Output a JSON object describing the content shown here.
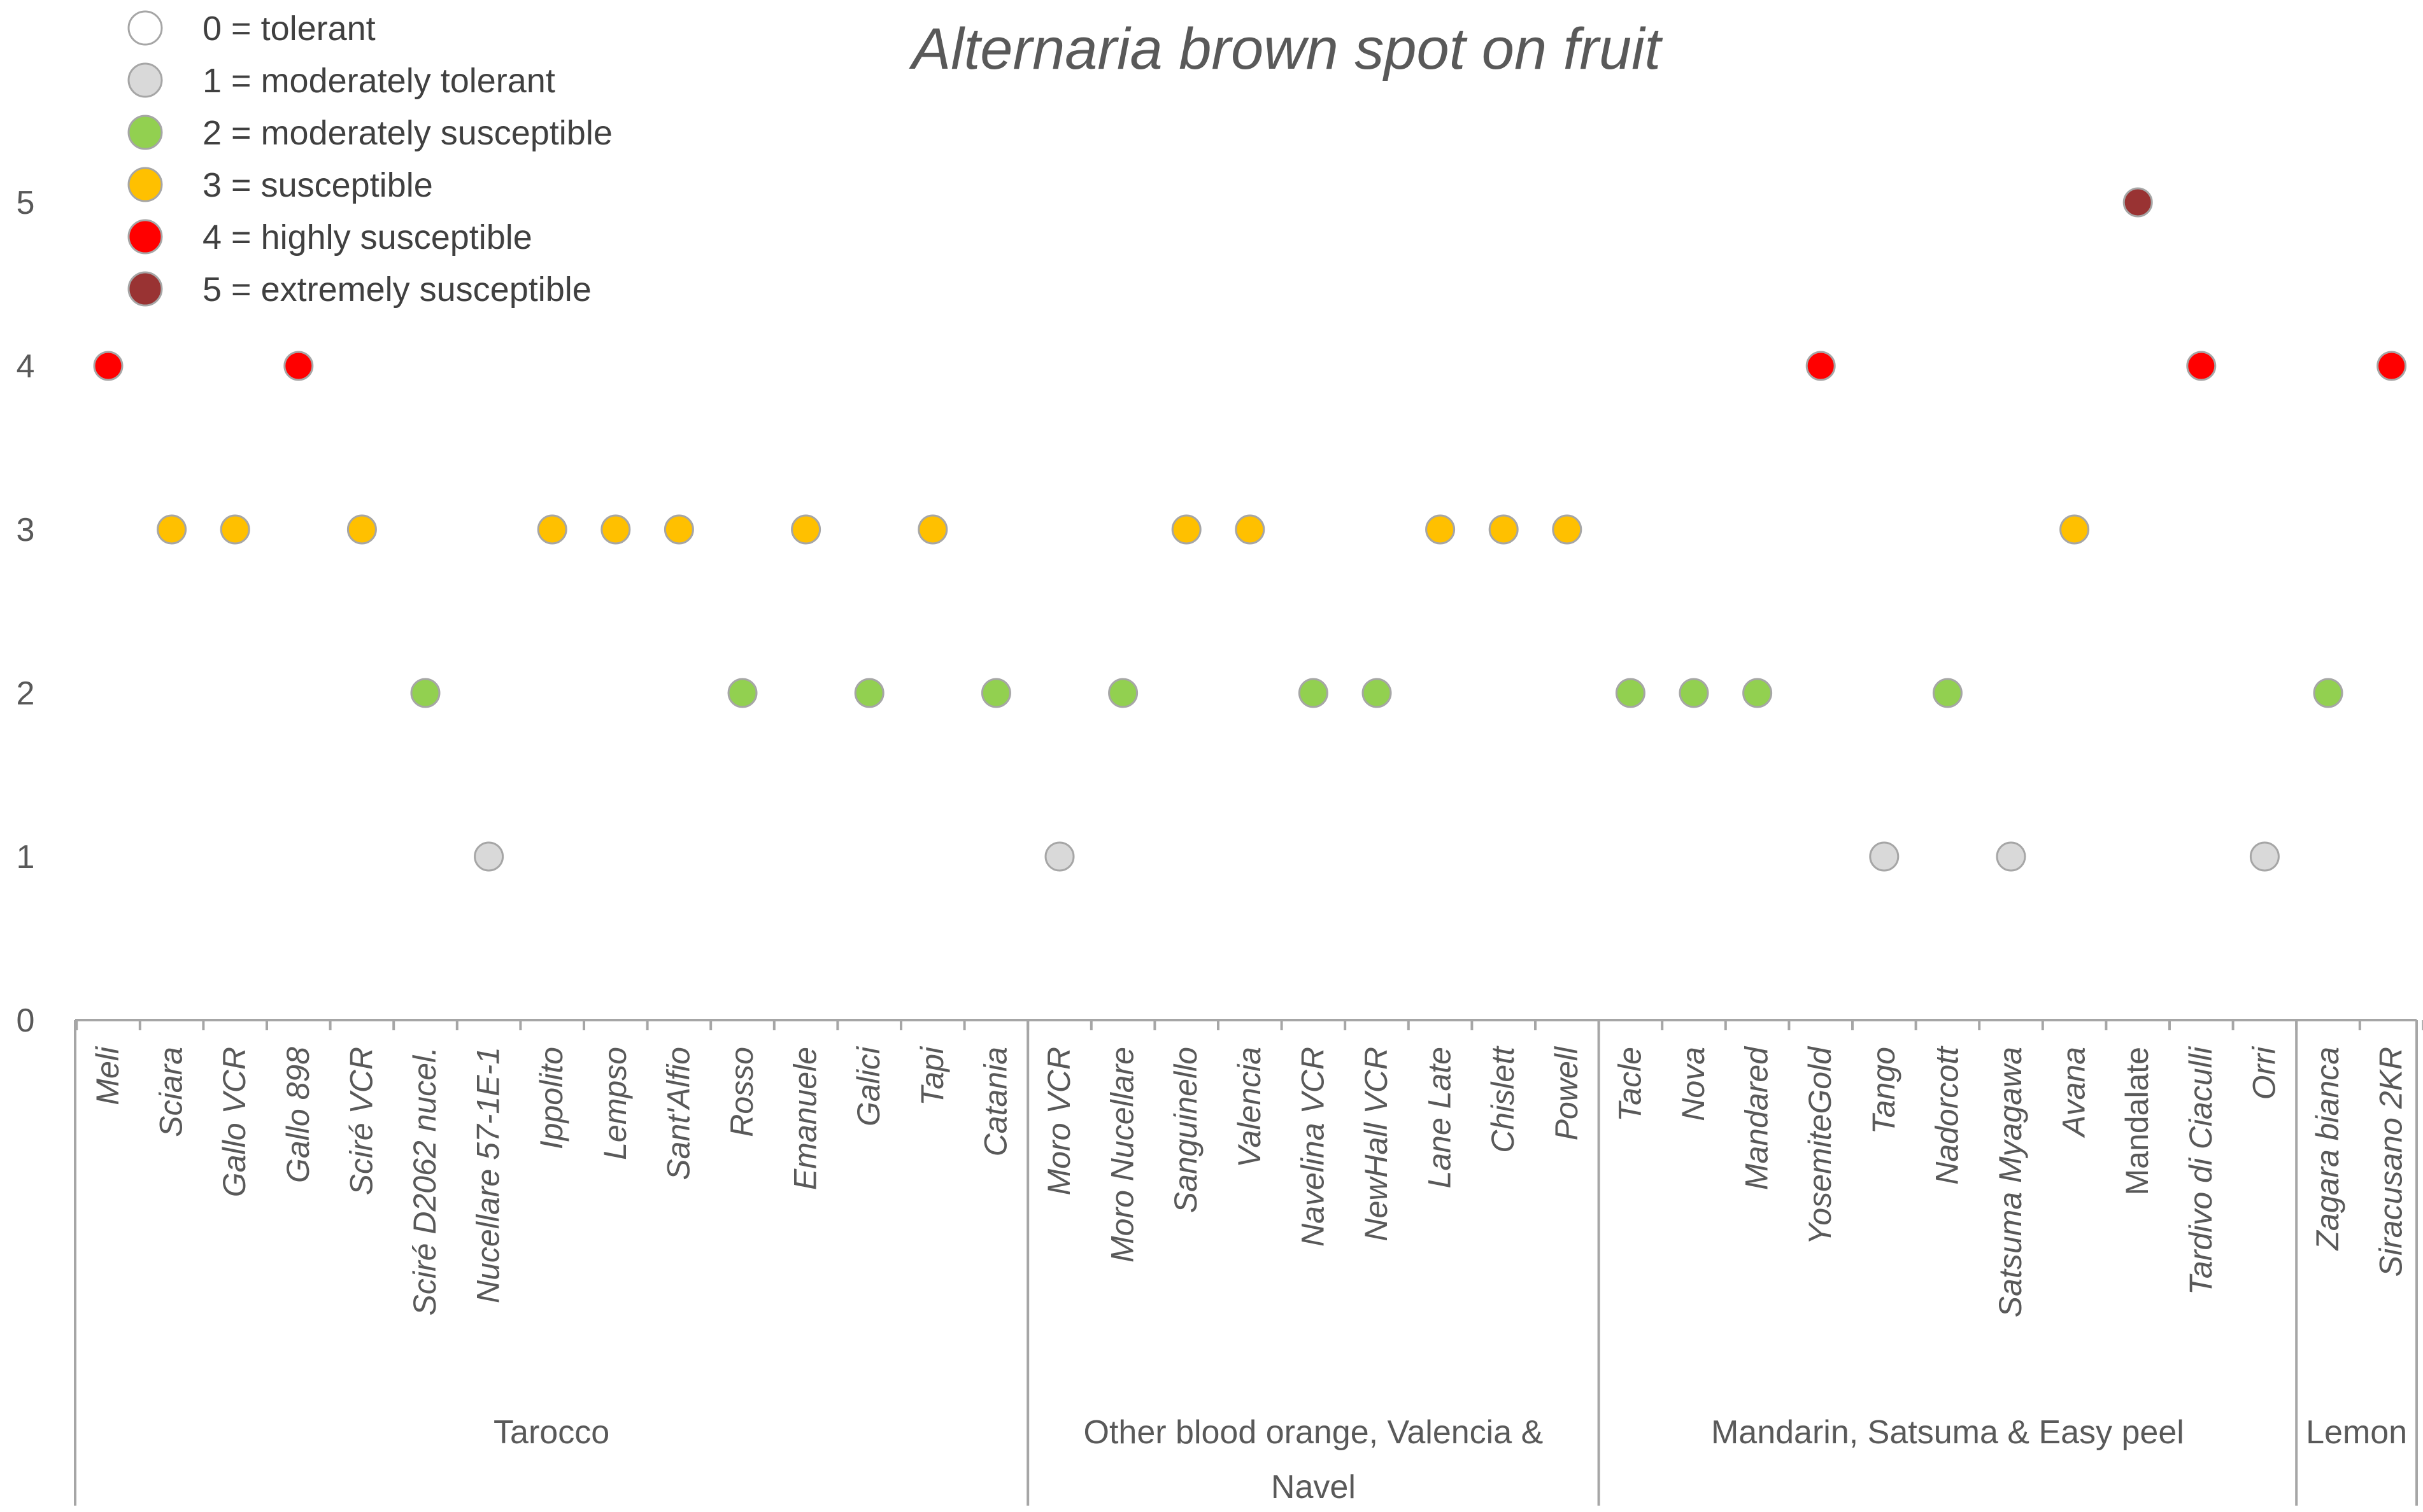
{
  "chart_data": {
    "type": "scatter",
    "title": "Alternaria brown spot on fruit",
    "ylim": [
      0,
      5
    ],
    "yticks": [
      "0",
      "1",
      "2",
      "3",
      "4",
      "5"
    ],
    "legend_position": "top-left",
    "legend": [
      {
        "value": 0,
        "label": "0 = tolerant",
        "color": "#ffffff"
      },
      {
        "value": 1,
        "label": "1 = moderately tolerant",
        "color": "#d9d9d9"
      },
      {
        "value": 2,
        "label": "2 = moderately susceptible",
        "color": "#92d050"
      },
      {
        "value": 3,
        "label": "3 = susceptible",
        "color": "#ffc000"
      },
      {
        "value": 4,
        "label": "4 = highly susceptible",
        "color": "#ff0000"
      },
      {
        "value": 5,
        "label": "5 = extremely susceptible",
        "color": "#993333"
      }
    ],
    "groups": [
      {
        "name": "Tarocco",
        "count": 15
      },
      {
        "name": "Other blood orange, Valencia & Navel",
        "count": 9
      },
      {
        "name": "Mandarin, Satsuma & Easy peel",
        "count": 11
      },
      {
        "name": "Lemon",
        "count": 2
      }
    ],
    "points": [
      {
        "label": "Meli",
        "value": 4,
        "italic": true
      },
      {
        "label": "Sciara",
        "value": 3,
        "italic": true
      },
      {
        "label": "Gallo VCR",
        "value": 3,
        "italic": true
      },
      {
        "label": "Gallo 898",
        "value": 4,
        "italic": true
      },
      {
        "label": "Sciré VCR",
        "value": 3,
        "italic": true
      },
      {
        "label": "Sciré D2062 nucel.",
        "value": 2,
        "italic": true
      },
      {
        "label": "Nucellare 57-1E-1",
        "value": 1,
        "italic": true
      },
      {
        "label": "Ippolito",
        "value": 3,
        "italic": true
      },
      {
        "label": "Lempso",
        "value": 3,
        "italic": true
      },
      {
        "label": "Sant'Alfio",
        "value": 3,
        "italic": true
      },
      {
        "label": "Rosso",
        "value": 2,
        "italic": true
      },
      {
        "label": "Emanuele",
        "value": 3,
        "italic": true
      },
      {
        "label": "Galici",
        "value": 2,
        "italic": true
      },
      {
        "label": "Tapi",
        "value": 3,
        "italic": true
      },
      {
        "label": "Catania",
        "value": 2,
        "italic": true
      },
      {
        "label": "Moro VCR",
        "value": 1,
        "italic": true
      },
      {
        "label": "Moro Nucellare",
        "value": 2,
        "italic": true
      },
      {
        "label": "Sanguinello",
        "value": 3,
        "italic": true
      },
      {
        "label": "Valencia",
        "value": 3,
        "italic": true
      },
      {
        "label": "Navelina VCR",
        "value": 2,
        "italic": true
      },
      {
        "label": "NewHall VCR",
        "value": 2,
        "italic": true
      },
      {
        "label": "Lane Late",
        "value": 3,
        "italic": true
      },
      {
        "label": "Chislett",
        "value": 3,
        "italic": true
      },
      {
        "label": "Powell",
        "value": 3,
        "italic": true
      },
      {
        "label": "Tacle",
        "value": 2,
        "italic": true
      },
      {
        "label": "Nova",
        "value": 2,
        "italic": true
      },
      {
        "label": "Mandared",
        "value": 2,
        "italic": true
      },
      {
        "label": "YosemiteGold",
        "value": 4,
        "italic": true
      },
      {
        "label": "Tango",
        "value": 1,
        "italic": true
      },
      {
        "label": "Nadorcott",
        "value": 2,
        "italic": true
      },
      {
        "label": "Satsuma Myagawa",
        "value": 1,
        "italic": true
      },
      {
        "label": "Avana",
        "value": 3,
        "italic": true
      },
      {
        "label": "Mandalate",
        "value": 5,
        "italic": false
      },
      {
        "label": "Tardivo di Ciaculli",
        "value": 4,
        "italic": true
      },
      {
        "label": "Orri",
        "value": 1,
        "italic": true
      },
      {
        "label": "Zagara bianca",
        "value": 2,
        "italic": true
      },
      {
        "label": "Siracusano 2KR",
        "value": 4,
        "italic": true
      }
    ]
  }
}
